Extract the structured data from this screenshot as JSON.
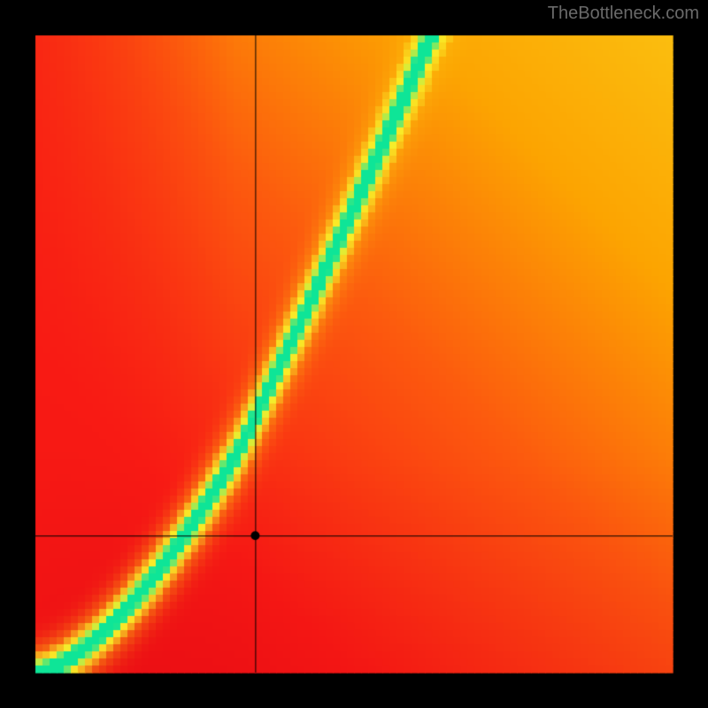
{
  "watermark": "TheBottleneck.com",
  "chart": {
    "type": "heatmap",
    "canvas_size": 800,
    "plot_margin": 40,
    "plot_size": 720,
    "grid_cells": 90,
    "background_color": "#000000",
    "crosshair": {
      "u": 0.345,
      "v": 0.215,
      "line_color": "#000000",
      "line_width": 1,
      "dot_radius": 5,
      "dot_color": "#000000"
    },
    "curve": {
      "comment": "value field maps u in [0,1] to optimal v in [0,1]; green ridge follows this curve",
      "break_u": 0.32,
      "low_exp": 1.55,
      "low_scale": 0.35,
      "high_slope": 2.05
    },
    "ridge": {
      "sigma_base": 0.028,
      "sigma_growth": 0.055,
      "green_threshold": 0.82,
      "yellow_threshold": 0.5
    },
    "corner_gradient": {
      "comment": "warm background: top-right orange, bottom-left deep red",
      "weight": 1.0
    },
    "colors": {
      "green": "#0EE597",
      "yellow": "#F9ED28",
      "orange": "#FCA401",
      "orange_red": "#FC5A0E",
      "red": "#F81A14",
      "deep_red": "#E50914"
    }
  }
}
